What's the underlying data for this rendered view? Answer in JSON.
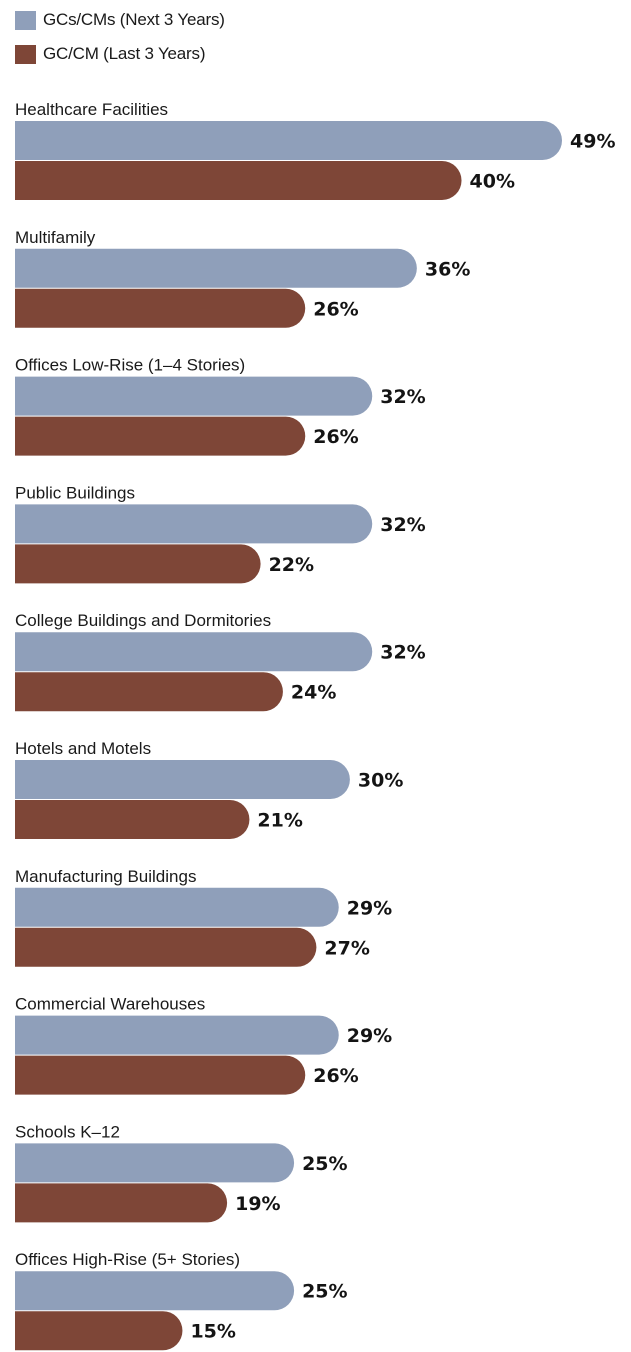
{
  "chart_data": {
    "type": "bar",
    "orientation": "horizontal",
    "categories": [
      "Healthcare Facilities",
      "Multifamily",
      "Offices Low-Rise (1–4 Stories)",
      "Public Buildings",
      "College Buildings and Dormitories",
      "Hotels and Motels",
      "Manufacturing Buildings",
      "Commercial Warehouses",
      "Schools K–12",
      "Offices High-Rise (5+ Stories)"
    ],
    "series": [
      {
        "name": "GCs/CMs (Next 3 Years)",
        "color": "#8f9fba",
        "values": [
          49,
          36,
          32,
          32,
          32,
          30,
          29,
          29,
          25,
          25
        ],
        "labels": [
          "49%",
          "36%",
          "32%",
          "32%",
          "32%",
          "30%",
          "29%",
          "29%",
          "25%",
          "25%"
        ]
      },
      {
        "name": "GC/CM (Last 3 Years)",
        "color": "#7e4637",
        "values": [
          40,
          26,
          26,
          22,
          24,
          21,
          27,
          26,
          19,
          15
        ],
        "labels": [
          "40%",
          "26%",
          "26%",
          "22%",
          "24%",
          "21%",
          "27%",
          "26%",
          "19%",
          "15%"
        ]
      }
    ],
    "legend": "top-left",
    "grid": false,
    "xlim": [
      0,
      49
    ]
  }
}
